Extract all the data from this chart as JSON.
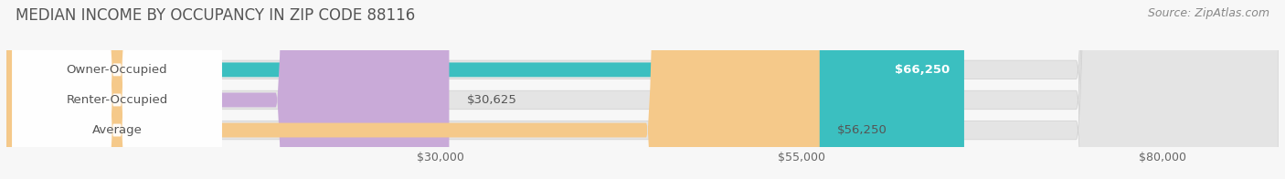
{
  "title": "MEDIAN INCOME BY OCCUPANCY IN ZIP CODE 88116",
  "source": "Source: ZipAtlas.com",
  "categories": [
    "Owner-Occupied",
    "Renter-Occupied",
    "Average"
  ],
  "values": [
    66250,
    30625,
    56250
  ],
  "bar_colors": [
    "#3bbfc0",
    "#c9aad8",
    "#f5c98a"
  ],
  "bar_bg_color": "#e4e4e4",
  "value_labels": [
    "$66,250",
    "$30,625",
    "$56,250"
  ],
  "value_label_inside": [
    true,
    false,
    false
  ],
  "x_ticks": [
    30000,
    55000,
    80000
  ],
  "x_tick_labels": [
    "$30,000",
    "$55,000",
    "$80,000"
  ],
  "xlim_max": 88000,
  "title_fontsize": 12,
  "source_fontsize": 9,
  "bar_label_fontsize": 9.5,
  "value_label_fontsize": 9.5,
  "tick_fontsize": 9,
  "bg_color": "#f7f7f7",
  "figsize": [
    14.06,
    1.96
  ],
  "dpi": 100
}
